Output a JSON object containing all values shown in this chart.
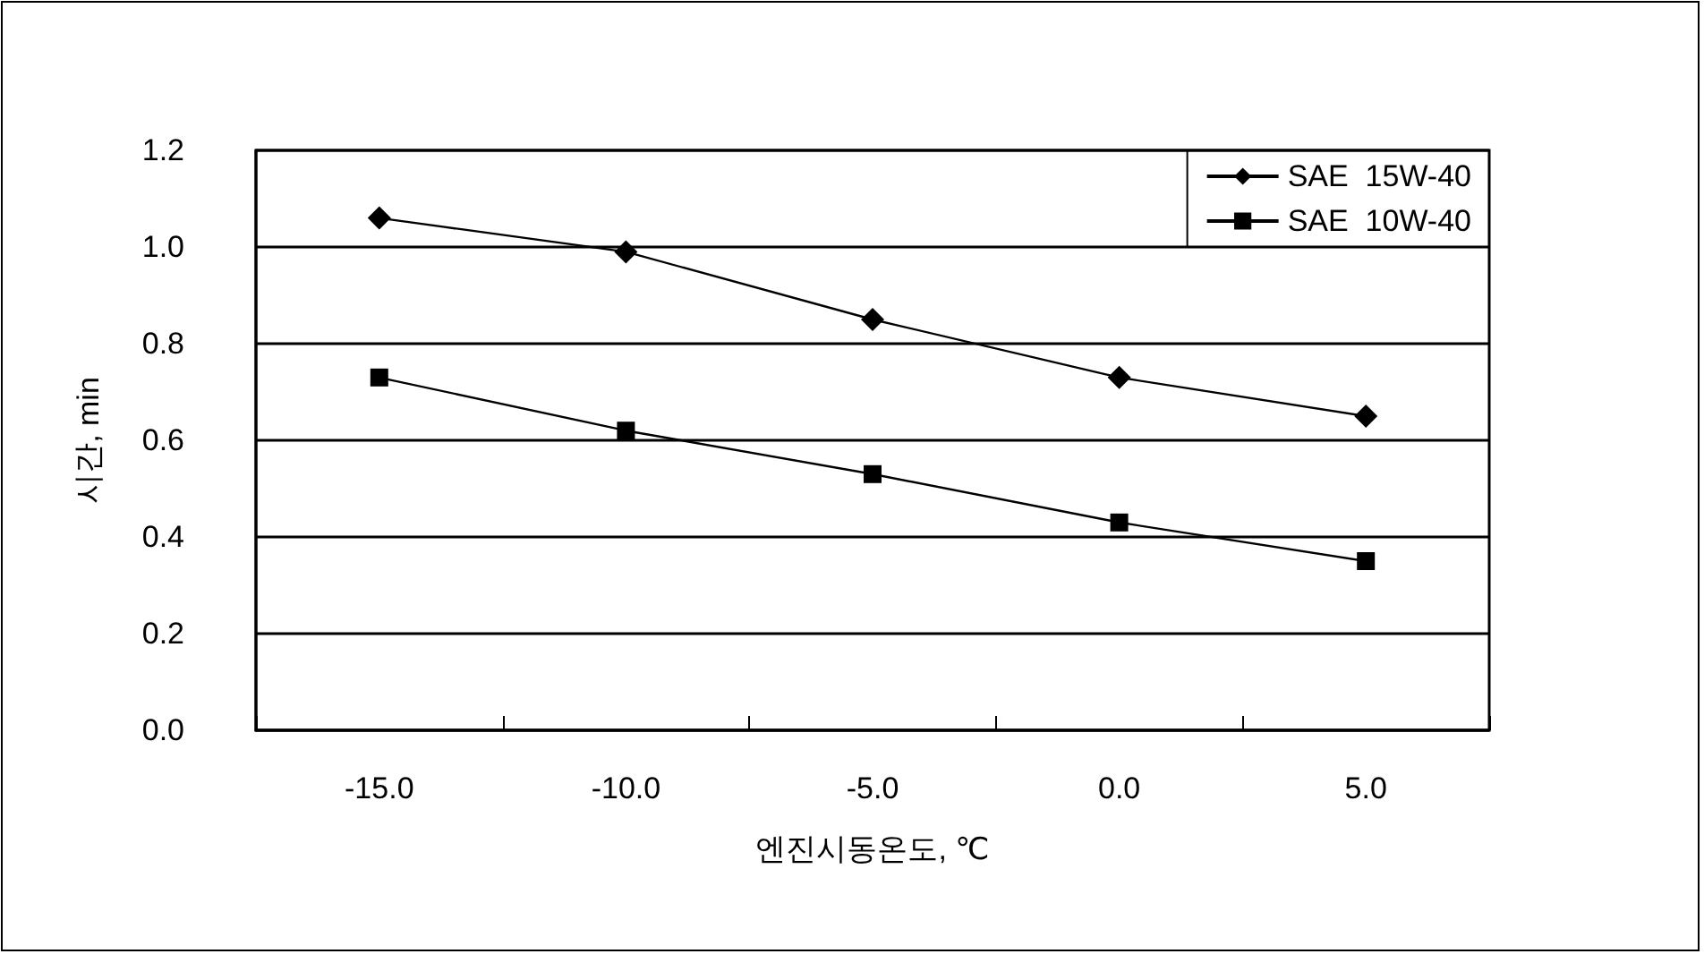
{
  "chart_data": {
    "type": "line",
    "xlabel": "엔진시동온도, ℃",
    "ylabel": "시간, min",
    "categories": [
      "-15.0",
      "-10.0",
      "-5.0",
      "0.0",
      "5.0"
    ],
    "series": [
      {
        "name": "SAE  15W-40",
        "color": "#000000",
        "marker": "diamond",
        "values": [
          1.06,
          0.99,
          0.85,
          0.73,
          0.65
        ]
      },
      {
        "name": "SAE  10W-40",
        "color": "#000000",
        "marker": "square",
        "values": [
          0.73,
          0.62,
          0.53,
          0.43,
          0.35
        ]
      }
    ],
    "ylim": [
      0,
      1.2
    ],
    "yticks": [
      {
        "value": 0,
        "label": "0.0"
      },
      {
        "value": 0.2,
        "label": "0.2"
      },
      {
        "value": 0.4,
        "label": "0.4"
      },
      {
        "value": 0.6,
        "label": "0.6"
      },
      {
        "value": 0.8,
        "label": "0.8"
      },
      {
        "value": 1,
        "label": "1.0"
      },
      {
        "value": 1.2,
        "label": "1.2"
      }
    ],
    "grid": "y",
    "legend": "top right",
    "line_style": "solid"
  }
}
